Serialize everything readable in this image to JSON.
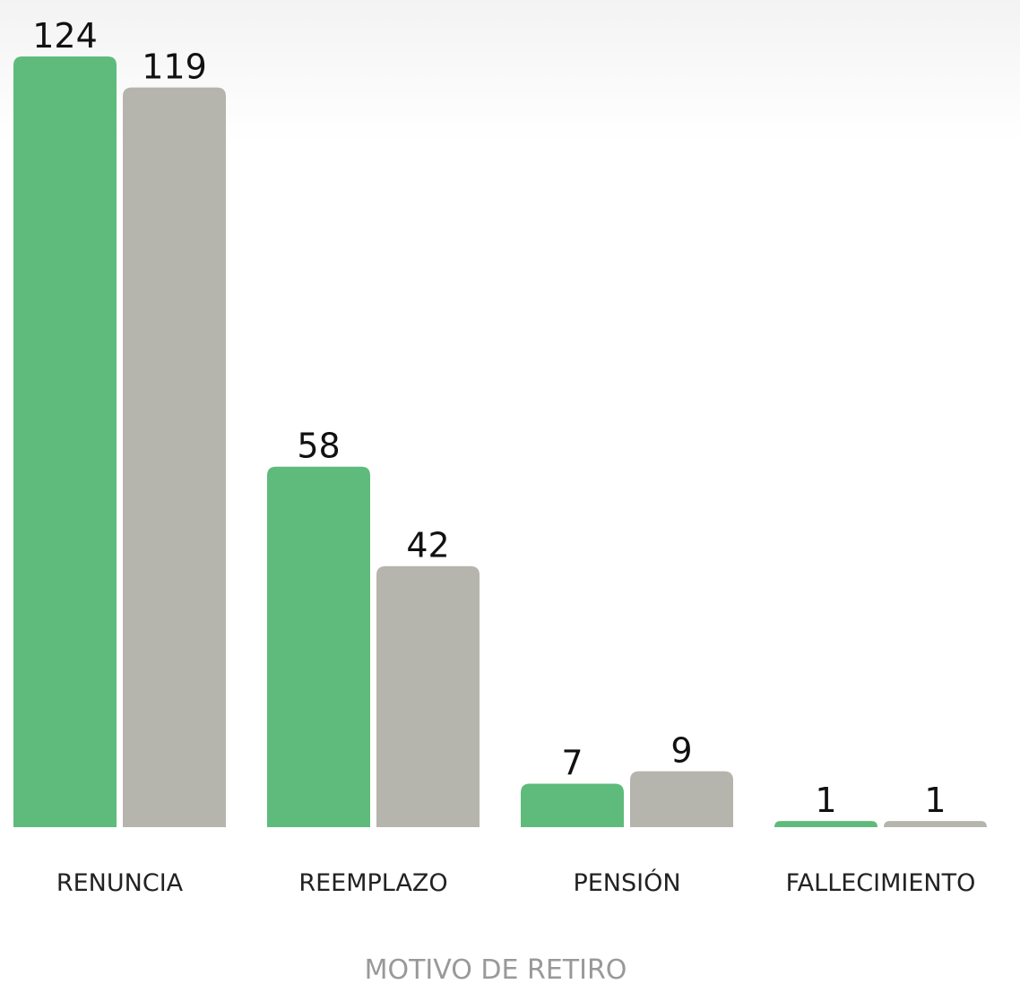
{
  "chart_data": {
    "type": "bar",
    "x_label": "MOTIVO DE RETIRO",
    "categories": [
      "RENUNCIA",
      "REEMPLAZO",
      "PENSIÓN",
      "FALLECIMIENTO"
    ],
    "series": [
      {
        "color": "#5fbb7b",
        "values": [
          124,
          58,
          7,
          1
        ]
      },
      {
        "color": "#b5b5ad",
        "values": [
          119,
          42,
          9,
          1
        ]
      }
    ]
  }
}
